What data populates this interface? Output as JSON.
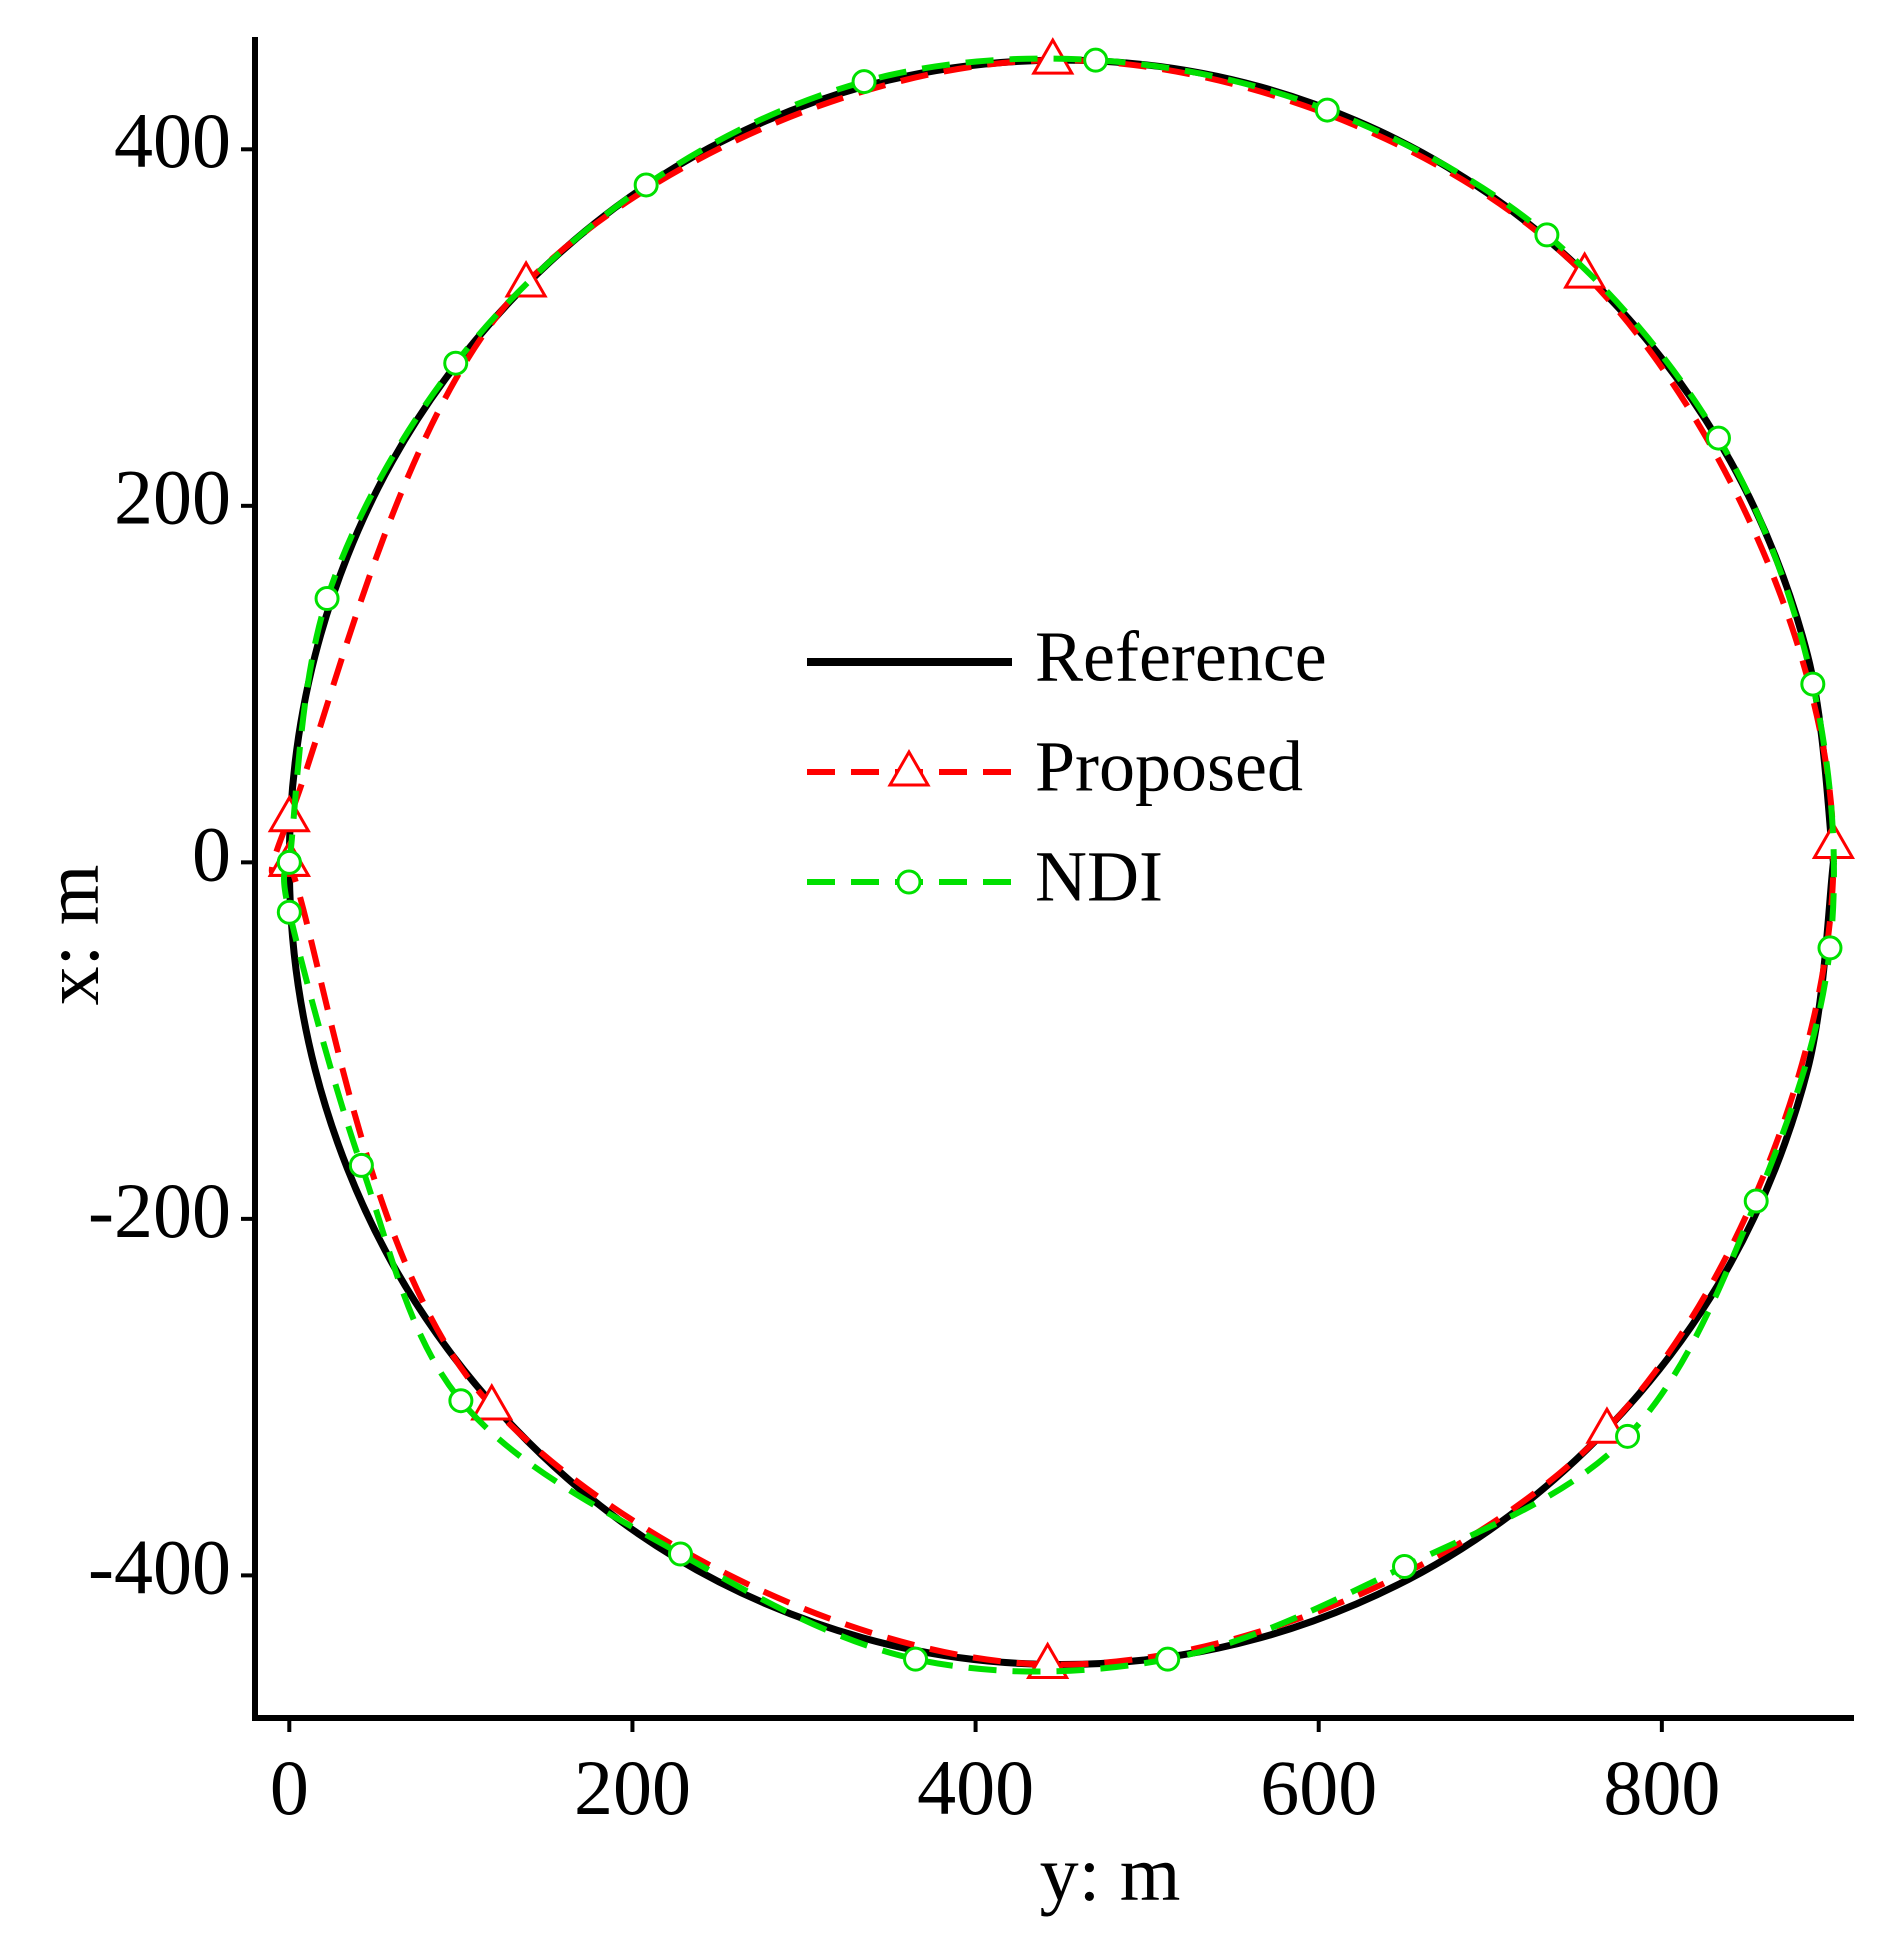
{
  "chart_data": {
    "type": "line",
    "xlabel": "y: m",
    "ylabel": "x: m",
    "xlim": [
      -20,
      912
    ],
    "ylim": [
      -480,
      463
    ],
    "xticks": [
      0,
      200,
      400,
      600,
      800
    ],
    "yticks": [
      -400,
      -200,
      0,
      200,
      400
    ],
    "legend": "center",
    "series": [
      {
        "name": "Reference",
        "color": "#000000",
        "dash": "solid",
        "marker": "none",
        "x": [
          900,
          885,
          840,
          768,
          675,
          566,
          450,
          334,
          225,
          132,
          60,
          15,
          0,
          15,
          60,
          132,
          225,
          334,
          450,
          566,
          675,
          768,
          840,
          885,
          900
        ],
        "values": [
          0,
          116,
          225,
          318,
          390,
          435,
          450,
          435,
          390,
          318,
          225,
          116,
          0,
          -116,
          -225,
          -318,
          -390,
          -435,
          -450,
          -435,
          -390,
          -318,
          -225,
          -116,
          0
        ]
      },
      {
        "name": "Proposed",
        "color": "#ff0000",
        "dash": "dashed",
        "marker": "triangle",
        "x": [
          0,
          0,
          138,
          445,
          755,
          900,
          768,
          442,
          118,
          0
        ],
        "values": [
          0,
          25,
          325,
          450,
          330,
          10,
          -318,
          -450,
          -305,
          0
        ]
      },
      {
        "name": "NDI",
        "color": "#00e000",
        "dash": "dashed",
        "marker": "circle",
        "x": [
          0,
          22,
          97,
          208,
          335,
          470,
          605,
          733,
          833,
          888,
          898,
          855,
          780,
          650,
          512,
          365,
          228,
          100,
          42,
          0,
          0
        ],
        "values": [
          0,
          148,
          280,
          380,
          438,
          450,
          422,
          352,
          238,
          100,
          -48,
          -190,
          -322,
          -395,
          -447,
          -447,
          -388,
          -302,
          -170,
          -28,
          0
        ]
      }
    ]
  }
}
